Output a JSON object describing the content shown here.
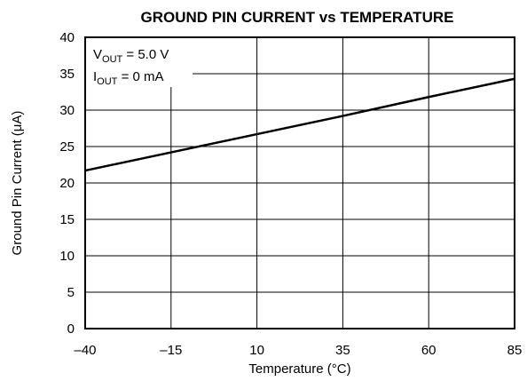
{
  "chart_data": {
    "type": "line",
    "title": "GROUND PIN CURRENT vs TEMPERATURE",
    "xlabel": "Temperature (°C)",
    "ylabel": "Ground Pin Current (μA)",
    "xlim": [
      -40,
      85
    ],
    "ylim": [
      0,
      40
    ],
    "x_ticks": [
      -40,
      -15,
      10,
      35,
      60,
      85
    ],
    "x_tick_labels": [
      "–40",
      "–15",
      "10",
      "35",
      "60",
      "85"
    ],
    "y_ticks": [
      0,
      5,
      10,
      15,
      20,
      25,
      30,
      35,
      40
    ],
    "y_tick_labels": [
      "0",
      "5",
      "10",
      "15",
      "20",
      "25",
      "30",
      "35",
      "40"
    ],
    "grid": true,
    "series": [
      {
        "x": [
          -40,
          -15,
          10,
          35,
          60,
          85
        ],
        "values": [
          21.7,
          24.2,
          26.7,
          29.2,
          31.8,
          34.3
        ]
      }
    ],
    "annotations": {
      "line1": {
        "main": "V",
        "sub": "OUT",
        "rest": " = 5.0 V"
      },
      "line2": {
        "main": "I",
        "sub": "OUT",
        "rest": " = 0 mA"
      }
    },
    "colors": {
      "line": "#000000",
      "grid": "#000000",
      "background": "#ffffff"
    }
  }
}
